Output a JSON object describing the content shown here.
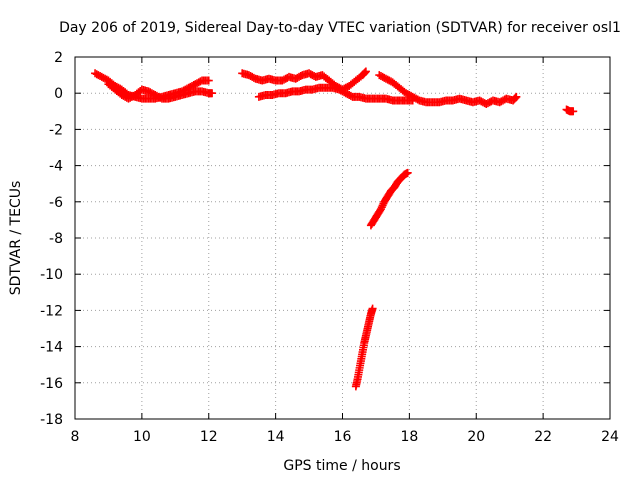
{
  "chart_data": {
    "type": "scatter",
    "title": "Day 206 of 2019, Sidereal Day-to-day VTEC variation (SDTVAR) for receiver osl1",
    "xlabel": "GPS time / hours",
    "ylabel": "SDTVAR / TECUs",
    "xlim": [
      8,
      24
    ],
    "ylim": [
      -18,
      2
    ],
    "xticks": [
      "8",
      "10",
      "12",
      "14",
      "16",
      "18",
      "20",
      "22",
      "24"
    ],
    "yticks": [
      "2",
      "0",
      "-2",
      "-4",
      "-6",
      "-8",
      "-10",
      "-12",
      "-14",
      "-16",
      "-18"
    ],
    "grid": true,
    "marker": "plus",
    "marker_color": "#ff0000",
    "series": [
      {
        "name": "segment-a-upper",
        "points": [
          [
            8.6,
            1.1
          ],
          [
            8.8,
            0.9
          ],
          [
            9.0,
            0.7
          ],
          [
            9.2,
            0.4
          ],
          [
            9.4,
            0.2
          ],
          [
            9.6,
            -0.1
          ],
          [
            9.8,
            -0.2
          ],
          [
            10.0,
            -0.3
          ],
          [
            10.2,
            -0.3
          ],
          [
            10.4,
            -0.3
          ],
          [
            10.6,
            -0.2
          ],
          [
            10.8,
            -0.1
          ],
          [
            11.0,
            0.0
          ],
          [
            11.2,
            0.1
          ],
          [
            11.4,
            0.3
          ],
          [
            11.6,
            0.5
          ],
          [
            11.8,
            0.7
          ],
          [
            12.0,
            0.7
          ]
        ]
      },
      {
        "name": "segment-a-lower",
        "points": [
          [
            9.0,
            0.5
          ],
          [
            9.2,
            0.2
          ],
          [
            9.4,
            -0.1
          ],
          [
            9.6,
            -0.3
          ],
          [
            9.8,
            -0.1
          ],
          [
            10.0,
            0.2
          ],
          [
            10.2,
            0.1
          ],
          [
            10.4,
            -0.1
          ],
          [
            10.6,
            -0.3
          ],
          [
            10.8,
            -0.3
          ],
          [
            11.0,
            -0.2
          ],
          [
            11.2,
            -0.1
          ],
          [
            11.4,
            0.0
          ],
          [
            11.6,
            0.1
          ],
          [
            11.8,
            0.1
          ],
          [
            12.0,
            0.0
          ],
          [
            12.1,
            0.0
          ]
        ]
      },
      {
        "name": "segment-b-upper",
        "points": [
          [
            13.0,
            1.1
          ],
          [
            13.2,
            1.0
          ],
          [
            13.4,
            0.8
          ],
          [
            13.6,
            0.7
          ],
          [
            13.8,
            0.8
          ],
          [
            14.0,
            0.7
          ],
          [
            14.2,
            0.7
          ],
          [
            14.4,
            0.9
          ],
          [
            14.6,
            0.8
          ],
          [
            14.8,
            1.0
          ],
          [
            15.0,
            1.1
          ],
          [
            15.2,
            0.9
          ],
          [
            15.4,
            1.0
          ],
          [
            15.6,
            0.7
          ],
          [
            15.8,
            0.4
          ],
          [
            16.0,
            0.2
          ],
          [
            16.2,
            0.4
          ],
          [
            16.4,
            0.7
          ],
          [
            16.6,
            1.0
          ],
          [
            16.7,
            1.2
          ]
        ]
      },
      {
        "name": "segment-b-lower",
        "points": [
          [
            13.5,
            -0.2
          ],
          [
            13.7,
            -0.1
          ],
          [
            13.9,
            -0.1
          ],
          [
            14.1,
            0.0
          ],
          [
            14.3,
            0.0
          ],
          [
            14.5,
            0.1
          ],
          [
            14.7,
            0.1
          ],
          [
            14.9,
            0.2
          ],
          [
            15.1,
            0.2
          ],
          [
            15.3,
            0.3
          ],
          [
            15.5,
            0.3
          ],
          [
            15.7,
            0.3
          ],
          [
            15.9,
            0.2
          ],
          [
            16.1,
            0.0
          ],
          [
            16.3,
            -0.2
          ],
          [
            16.5,
            -0.2
          ],
          [
            16.7,
            -0.3
          ],
          [
            16.9,
            -0.3
          ],
          [
            17.1,
            -0.3
          ],
          [
            17.3,
            -0.3
          ],
          [
            17.5,
            -0.4
          ],
          [
            17.7,
            -0.4
          ],
          [
            17.9,
            -0.4
          ],
          [
            18.1,
            -0.4
          ]
        ]
      },
      {
        "name": "segment-b-tail",
        "points": [
          [
            17.1,
            1.0
          ],
          [
            17.3,
            0.8
          ],
          [
            17.5,
            0.6
          ],
          [
            17.7,
            0.3
          ],
          [
            17.9,
            0.0
          ],
          [
            18.1,
            -0.2
          ],
          [
            18.3,
            -0.4
          ],
          [
            18.5,
            -0.5
          ],
          [
            18.7,
            -0.5
          ],
          [
            18.9,
            -0.5
          ],
          [
            19.1,
            -0.4
          ],
          [
            19.3,
            -0.4
          ],
          [
            19.5,
            -0.3
          ],
          [
            19.7,
            -0.4
          ],
          [
            19.9,
            -0.5
          ],
          [
            20.1,
            -0.4
          ],
          [
            20.3,
            -0.6
          ],
          [
            20.5,
            -0.4
          ],
          [
            20.7,
            -0.5
          ],
          [
            20.9,
            -0.3
          ],
          [
            21.1,
            -0.4
          ],
          [
            21.2,
            -0.2
          ]
        ]
      },
      {
        "name": "segment-c",
        "points": [
          [
            22.7,
            -0.9
          ],
          [
            22.8,
            -1.0
          ],
          [
            22.9,
            -1.0
          ]
        ]
      },
      {
        "name": "segment-d-steep",
        "points": [
          [
            16.85,
            -7.3
          ],
          [
            16.95,
            -7.0
          ],
          [
            17.05,
            -6.7
          ],
          [
            17.15,
            -6.4
          ],
          [
            17.25,
            -6.0
          ],
          [
            17.35,
            -5.7
          ],
          [
            17.45,
            -5.4
          ],
          [
            17.55,
            -5.2
          ],
          [
            17.65,
            -4.9
          ],
          [
            17.75,
            -4.7
          ],
          [
            17.85,
            -4.5
          ],
          [
            17.95,
            -4.4
          ]
        ]
      },
      {
        "name": "segment-e-vertical",
        "points": [
          [
            16.4,
            -16.2
          ],
          [
            16.45,
            -15.8
          ],
          [
            16.5,
            -15.3
          ],
          [
            16.55,
            -14.8
          ],
          [
            16.6,
            -14.3
          ],
          [
            16.65,
            -13.8
          ],
          [
            16.7,
            -13.4
          ],
          [
            16.75,
            -13.0
          ],
          [
            16.8,
            -12.6
          ],
          [
            16.85,
            -12.2
          ],
          [
            16.9,
            -11.9
          ]
        ]
      }
    ]
  }
}
